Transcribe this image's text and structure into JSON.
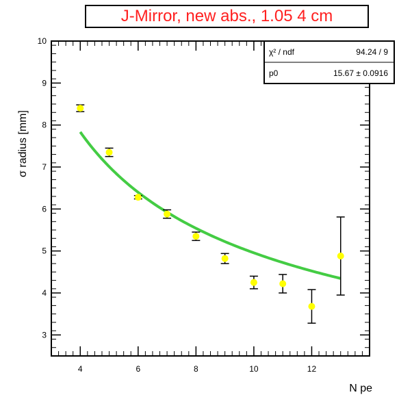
{
  "chart_data": {
    "type": "scatter",
    "title": "J-Mirror, new abs., 1.05 4 cm",
    "xlabel": "N pe",
    "ylabel": "σ radius [mm]",
    "xlim": [
      3,
      14
    ],
    "ylim": [
      2.5,
      10
    ],
    "xticks": [
      4,
      6,
      8,
      10,
      12
    ],
    "yticks": [
      3,
      4,
      5,
      6,
      7,
      8,
      9,
      10
    ],
    "grid": false,
    "marker_color": "#ffff00",
    "fit_color": "#44cc44",
    "points": [
      {
        "x": 4,
        "y": 8.4,
        "err": 0.08
      },
      {
        "x": 5,
        "y": 7.35,
        "err": 0.1
      },
      {
        "x": 6,
        "y": 6.28,
        "err": 0.04
      },
      {
        "x": 7,
        "y": 5.88,
        "err": 0.1
      },
      {
        "x": 8,
        "y": 5.35,
        "err": 0.1
      },
      {
        "x": 9,
        "y": 4.82,
        "err": 0.12
      },
      {
        "x": 10,
        "y": 4.25,
        "err": 0.15
      },
      {
        "x": 11,
        "y": 4.22,
        "err": 0.22
      },
      {
        "x": 12,
        "y": 3.68,
        "err": 0.4
      },
      {
        "x": 13,
        "y": 4.88,
        "err": 0.93
      }
    ],
    "fit": {
      "function": "p0/sqrt(x)",
      "p0": 15.67,
      "x_range": [
        4,
        13
      ]
    },
    "stats_box": {
      "rows": [
        {
          "label": "χ² / ndf",
          "value": "94.24 / 9"
        },
        {
          "label": "p0",
          "value": "15.67 ± 0.0916"
        }
      ]
    }
  }
}
